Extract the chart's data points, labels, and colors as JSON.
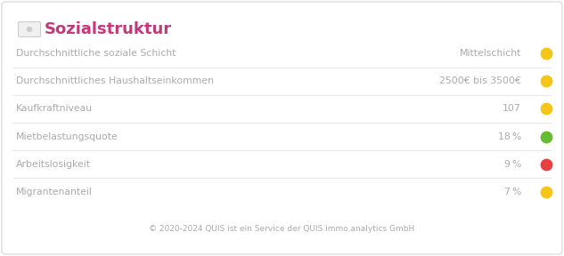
{
  "title": "Sozialstruktur",
  "title_color": "#c0397a",
  "background_color": "#ffffff",
  "border_color": "#dddddd",
  "footer": "© 2020-2024 QUIS ist ein Service der QUIS immo.analytics GmbH",
  "rows": [
    {
      "label": "Durchschnittliche soziale Schicht",
      "value": "Mittelschicht",
      "dot_color": "#f5c518"
    },
    {
      "label": "Durchschnittliches Haushaltseinkommen",
      "value": "2500€ bis 3500€",
      "dot_color": "#f5c518"
    },
    {
      "label": "Kaufkraftniveau",
      "value": "107",
      "dot_color": "#f5c518"
    },
    {
      "label": "Mietbelastungsquote",
      "value": "18 %",
      "dot_color": "#66bb33"
    },
    {
      "label": "Arbeitslosigkeit",
      "value": "9 %",
      "dot_color": "#e84040"
    },
    {
      "label": "Migrantenanteil",
      "value": "7 %",
      "dot_color": "#f5c518"
    }
  ],
  "label_color": "#aaaaaa",
  "value_color": "#aaaaaa",
  "separator_color": "#e8e8e8",
  "icon_color": "#cccccc",
  "label_fontsize": 7.8,
  "value_fontsize": 7.8,
  "title_fontsize": 13,
  "footer_fontsize": 6.5,
  "dot_size": 80,
  "fig_width": 6.33,
  "fig_height": 2.88,
  "dpi": 100
}
